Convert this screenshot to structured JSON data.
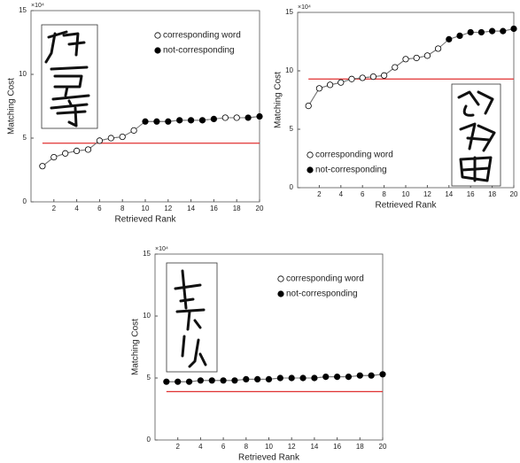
{
  "chart_data": [
    {
      "type": "line",
      "x_label": "Retrieved Rank",
      "y_label": "Matching Cost",
      "y_multiplier": "×10⁴",
      "x": [
        1,
        2,
        3,
        4,
        5,
        6,
        7,
        8,
        9,
        10,
        11,
        12,
        13,
        14,
        15,
        16,
        17,
        18,
        19,
        20
      ],
      "series": [
        {
          "name": "corresponding word",
          "color": "#000000",
          "marker": "open",
          "values": [
            2.8,
            3.5,
            3.8,
            4.0,
            4.1,
            4.8,
            5.0,
            5.1,
            5.6,
            null,
            null,
            null,
            null,
            null,
            null,
            null,
            6.6,
            6.6,
            null,
            null
          ]
        },
        {
          "name": "not-corresponding",
          "color": "#000000",
          "marker": "filled",
          "values": [
            null,
            null,
            null,
            null,
            null,
            null,
            null,
            null,
            null,
            6.3,
            6.3,
            6.3,
            6.4,
            6.4,
            6.4,
            6.5,
            null,
            null,
            6.6,
            6.7
          ]
        }
      ],
      "threshold": 4.6,
      "threshold_color": "#e03030",
      "xlim": [
        0,
        20
      ],
      "xticks": [
        2,
        4,
        6,
        8,
        10,
        12,
        14,
        16,
        18,
        20
      ],
      "ylim": [
        0,
        15
      ],
      "yticks": [
        0,
        5,
        10,
        15
      ],
      "legend": "upper right"
    },
    {
      "type": "line",
      "x_label": "Retrieved Rank",
      "y_label": "Matching Cost",
      "y_multiplier": "×10⁴",
      "x": [
        1,
        2,
        3,
        4,
        5,
        6,
        7,
        8,
        9,
        10,
        11,
        12,
        13,
        14,
        15,
        16,
        17,
        18,
        19,
        20
      ],
      "series": [
        {
          "name": "corresponding word",
          "color": "#000000",
          "marker": "open",
          "values": [
            7.0,
            8.5,
            8.8,
            9.0,
            9.3,
            9.4,
            9.5,
            9.6,
            10.3,
            11.0,
            11.1,
            11.3,
            11.9,
            null,
            null,
            null,
            null,
            null,
            null,
            null
          ]
        },
        {
          "name": "not-corresponding",
          "color": "#000000",
          "marker": "filled",
          "values": [
            null,
            null,
            null,
            null,
            null,
            null,
            null,
            null,
            null,
            null,
            null,
            null,
            null,
            12.7,
            13.0,
            13.3,
            13.3,
            13.4,
            13.4,
            13.6
          ]
        }
      ],
      "threshold": 9.3,
      "threshold_color": "#e03030",
      "xlim": [
        0,
        20
      ],
      "xticks": [
        2,
        4,
        6,
        8,
        10,
        12,
        14,
        16,
        18,
        20
      ],
      "ylim": [
        0,
        15
      ],
      "yticks": [
        0,
        5,
        10,
        15
      ],
      "legend": "lower left"
    },
    {
      "type": "line",
      "x_label": "Retrieved Rank",
      "y_label": "Matching Cost",
      "y_multiplier": "×10⁴",
      "x": [
        1,
        2,
        3,
        4,
        5,
        6,
        7,
        8,
        9,
        10,
        11,
        12,
        13,
        14,
        15,
        16,
        17,
        18,
        19,
        20
      ],
      "series": [
        {
          "name": "corresponding word",
          "color": "#000000",
          "marker": "open",
          "values": [
            null,
            null,
            null,
            null,
            null,
            null,
            null,
            null,
            null,
            null,
            null,
            null,
            null,
            null,
            null,
            null,
            null,
            null,
            null,
            null
          ]
        },
        {
          "name": "not-corresponding",
          "color": "#000000",
          "marker": "filled",
          "values": [
            4.7,
            4.7,
            4.7,
            4.8,
            4.8,
            4.8,
            4.8,
            4.9,
            4.9,
            4.9,
            5.0,
            5.0,
            5.0,
            5.0,
            5.1,
            5.1,
            5.1,
            5.2,
            5.2,
            5.3
          ]
        }
      ],
      "threshold": 3.9,
      "threshold_color": "#e03030",
      "xlim": [
        0,
        20
      ],
      "xticks": [
        2,
        4,
        6,
        8,
        10,
        12,
        14,
        16,
        18,
        20
      ],
      "ylim": [
        0,
        15
      ],
      "yticks": [
        0,
        5,
        10,
        15
      ],
      "legend": "upper right"
    }
  ]
}
